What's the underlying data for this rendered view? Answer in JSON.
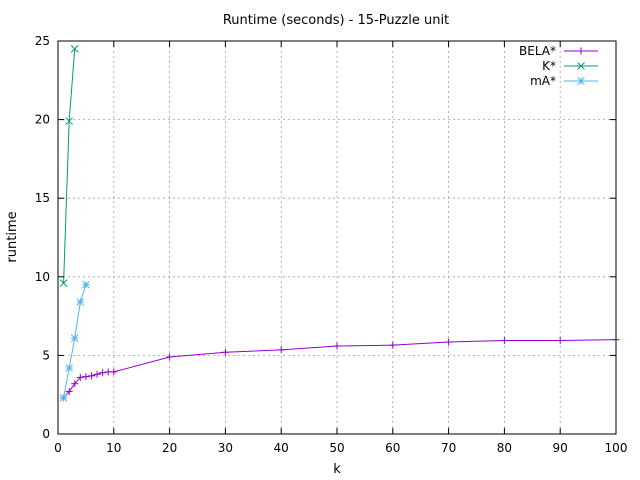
{
  "chart_data": {
    "type": "line",
    "title": "Runtime (seconds) - 15-Puzzle unit",
    "xlabel": "k",
    "ylabel": "runtime",
    "xlim": [
      0,
      100
    ],
    "ylim": [
      0,
      25
    ],
    "xticks": [
      0,
      10,
      20,
      30,
      40,
      50,
      60,
      70,
      80,
      90,
      100
    ],
    "yticks": [
      0,
      5,
      10,
      15,
      20,
      25
    ],
    "grid": true,
    "legend_position": "top-right",
    "series": [
      {
        "name": "BELA*",
        "color": "#9400d3",
        "marker": "plus",
        "x": [
          1,
          2,
          3,
          4,
          5,
          6,
          7,
          8,
          9,
          10,
          20,
          30,
          40,
          50,
          60,
          70,
          80,
          90,
          100
        ],
        "y": [
          2.3,
          2.7,
          3.2,
          3.6,
          3.65,
          3.7,
          3.8,
          3.9,
          3.95,
          3.95,
          4.9,
          5.2,
          5.35,
          5.6,
          5.65,
          5.85,
          5.95,
          5.95,
          6.0
        ]
      },
      {
        "name": "K*",
        "color": "#009e73",
        "marker": "x",
        "x": [
          1,
          2,
          3
        ],
        "y": [
          9.6,
          19.9,
          24.5
        ]
      },
      {
        "name": "mA*",
        "color": "#56b4e9",
        "marker": "star",
        "x": [
          1,
          2,
          3,
          4,
          5
        ],
        "y": [
          2.3,
          4.2,
          6.1,
          8.4,
          9.5
        ]
      }
    ]
  }
}
